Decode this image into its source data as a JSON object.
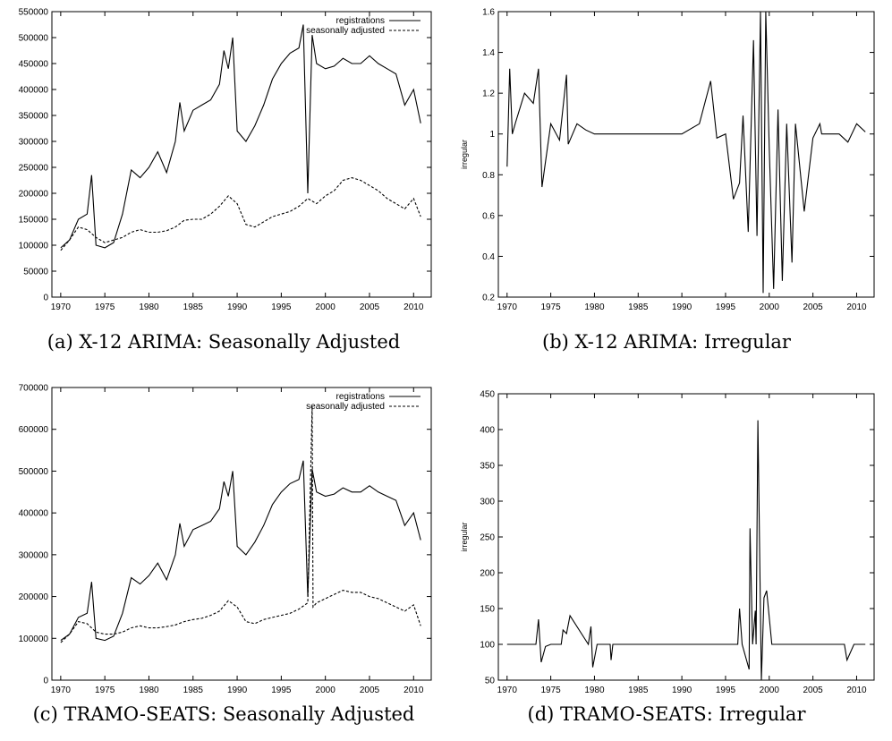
{
  "chart_data": [
    {
      "id": "a",
      "type": "line",
      "caption": "(a) X-12 ARIMA: Seasonally Adjusted",
      "xlim": [
        1969,
        2012
      ],
      "ylim": [
        0,
        550000
      ],
      "xticks": [
        1970,
        1975,
        1980,
        1985,
        1990,
        1995,
        2000,
        2005,
        2010
      ],
      "yticks": [
        0,
        50000,
        100000,
        150000,
        200000,
        250000,
        300000,
        350000,
        400000,
        450000,
        500000,
        550000
      ],
      "ylabel": "",
      "legend": [
        "registrations",
        "seasonally adjusted"
      ],
      "series": [
        {
          "name": "registrations",
          "style": "solid",
          "x": [
            1970,
            1971,
            1972,
            1973,
            1973.5,
            1974,
            1975,
            1976,
            1977,
            1978,
            1979,
            1980,
            1981,
            1982,
            1983,
            1983.5,
            1984,
            1985,
            1986,
            1987,
            1988,
            1988.5,
            1989,
            1989.5,
            1990,
            1991,
            1992,
            1993,
            1994,
            1995,
            1996,
            1997,
            1997.5,
            1998,
            1998.5,
            1999,
            2000,
            2001,
            2002,
            2003,
            2004,
            2005,
            2006,
            2007,
            2008,
            2009,
            2010,
            2010.8
          ],
          "y": [
            95000,
            110000,
            150000,
            160000,
            235000,
            100000,
            95000,
            105000,
            160000,
            245000,
            230000,
            250000,
            280000,
            240000,
            300000,
            375000,
            320000,
            360000,
            370000,
            380000,
            410000,
            475000,
            440000,
            500000,
            320000,
            300000,
            330000,
            370000,
            420000,
            450000,
            470000,
            480000,
            525000,
            200000,
            505000,
            450000,
            440000,
            445000,
            460000,
            450000,
            450000,
            465000,
            450000,
            440000,
            430000,
            370000,
            400000,
            335000
          ]
        },
        {
          "name": "seasonally adjusted",
          "style": "dashed",
          "x": [
            1970,
            1971,
            1972,
            1973,
            1974,
            1975,
            1976,
            1977,
            1978,
            1979,
            1980,
            1981,
            1982,
            1983,
            1984,
            1985,
            1986,
            1987,
            1988,
            1989,
            1990,
            1991,
            1992,
            1993,
            1994,
            1995,
            1996,
            1997,
            1998,
            1999,
            2000,
            2001,
            2002,
            2003,
            2004,
            2005,
            2006,
            2007,
            2008,
            2009,
            2010,
            2010.8
          ],
          "y": [
            90000,
            110000,
            135000,
            130000,
            115000,
            105000,
            110000,
            115000,
            125000,
            130000,
            125000,
            125000,
            128000,
            135000,
            148000,
            150000,
            150000,
            160000,
            175000,
            195000,
            180000,
            140000,
            135000,
            145000,
            155000,
            160000,
            165000,
            175000,
            190000,
            180000,
            195000,
            205000,
            225000,
            230000,
            225000,
            215000,
            205000,
            190000,
            180000,
            170000,
            190000,
            155000
          ]
        }
      ]
    },
    {
      "id": "b",
      "type": "line",
      "caption": "(b) X-12 ARIMA: Irregular",
      "xlim": [
        1969,
        2012
      ],
      "ylim": [
        0.2,
        1.6
      ],
      "xticks": [
        1970,
        1975,
        1980,
        1985,
        1990,
        1995,
        2000,
        2005,
        2010
      ],
      "yticks": [
        0.2,
        0.4,
        0.6,
        0.8,
        1,
        1.2,
        1.4,
        1.6
      ],
      "ylabel": "irregular",
      "series": [
        {
          "name": "irregular",
          "style": "solid",
          "x": [
            1970,
            1970.3,
            1970.6,
            1971,
            1972,
            1973,
            1973.6,
            1974,
            1975,
            1976,
            1976.8,
            1977,
            1978,
            1979,
            1980,
            1982,
            1984,
            1986,
            1988,
            1990,
            1992,
            1993.3,
            1994,
            1995,
            1995.9,
            1996.6,
            1997,
            1997.6,
            1998.2,
            1998.6,
            1999,
            1999.3,
            1999.6,
            2000,
            2000.5,
            2001,
            2001.5,
            2002,
            2002.6,
            2003,
            2004,
            2005,
            2005.8,
            2006,
            2007,
            2008,
            2009,
            2010,
            2011
          ],
          "y": [
            0.84,
            1.32,
            1.0,
            1.06,
            1.2,
            1.15,
            1.32,
            0.74,
            1.05,
            0.97,
            1.29,
            0.95,
            1.05,
            1.02,
            1.0,
            1.0,
            1.0,
            1.0,
            1.0,
            1.0,
            1.05,
            1.26,
            0.98,
            1.0,
            0.68,
            0.76,
            1.09,
            0.52,
            1.46,
            0.5,
            1.6,
            0.22,
            1.6,
            0.93,
            0.24,
            1.12,
            0.28,
            1.05,
            0.37,
            1.05,
            0.62,
            0.98,
            1.05,
            1.0,
            1.0,
            1.0,
            0.96,
            1.05,
            1.01
          ]
        }
      ]
    },
    {
      "id": "c",
      "type": "line",
      "caption": "(c) TRAMO-SEATS: Seasonally Adjusted",
      "xlim": [
        1969,
        2012
      ],
      "ylim": [
        0,
        700000
      ],
      "xticks": [
        1970,
        1975,
        1980,
        1985,
        1990,
        1995,
        2000,
        2005,
        2010
      ],
      "yticks": [
        0,
        100000,
        200000,
        300000,
        400000,
        500000,
        600000,
        700000
      ],
      "ylabel": "",
      "legend": [
        "registrations",
        "seasonally adjusted"
      ],
      "series": [
        {
          "name": "registrations",
          "style": "solid",
          "x": [
            1970,
            1971,
            1972,
            1973,
            1973.5,
            1974,
            1975,
            1976,
            1977,
            1978,
            1979,
            1980,
            1981,
            1982,
            1983,
            1983.5,
            1984,
            1985,
            1986,
            1987,
            1988,
            1988.5,
            1989,
            1989.5,
            1990,
            1991,
            1992,
            1993,
            1994,
            1995,
            1996,
            1997,
            1997.5,
            1998,
            1998.5,
            1999,
            2000,
            2001,
            2002,
            2003,
            2004,
            2005,
            2006,
            2007,
            2008,
            2009,
            2010,
            2010.8
          ],
          "y": [
            95000,
            110000,
            150000,
            160000,
            235000,
            100000,
            95000,
            105000,
            160000,
            245000,
            230000,
            250000,
            280000,
            240000,
            300000,
            375000,
            320000,
            360000,
            370000,
            380000,
            410000,
            475000,
            440000,
            500000,
            320000,
            300000,
            330000,
            370000,
            420000,
            450000,
            470000,
            480000,
            525000,
            200000,
            505000,
            450000,
            440000,
            445000,
            460000,
            450000,
            450000,
            465000,
            450000,
            440000,
            430000,
            370000,
            400000,
            335000
          ]
        },
        {
          "name": "seasonally adjusted",
          "style": "dashed",
          "x": [
            1970,
            1971,
            1972,
            1973,
            1974,
            1975,
            1976,
            1977,
            1978,
            1979,
            1980,
            1981,
            1982,
            1983,
            1984,
            1985,
            1986,
            1987,
            1988,
            1989,
            1990,
            1991,
            1992,
            1993,
            1994,
            1995,
            1996,
            1997,
            1998,
            1998.5,
            1998.6,
            1999,
            2000,
            2001,
            2002,
            2003,
            2004,
            2005,
            2006,
            2007,
            2008,
            2009,
            2010,
            2010.8
          ],
          "y": [
            90000,
            110000,
            140000,
            135000,
            115000,
            110000,
            110000,
            115000,
            125000,
            130000,
            125000,
            125000,
            128000,
            132000,
            140000,
            145000,
            148000,
            155000,
            165000,
            190000,
            175000,
            140000,
            135000,
            145000,
            150000,
            155000,
            160000,
            170000,
            185000,
            655000,
            175000,
            185000,
            195000,
            205000,
            215000,
            210000,
            210000,
            200000,
            195000,
            185000,
            175000,
            165000,
            180000,
            130000
          ]
        }
      ]
    },
    {
      "id": "d",
      "type": "line",
      "caption": "(d) TRAMO-SEATS: Irregular",
      "xlim": [
        1969,
        2012
      ],
      "ylim": [
        50,
        450
      ],
      "xticks": [
        1970,
        1975,
        1980,
        1985,
        1990,
        1995,
        2000,
        2005,
        2010
      ],
      "yticks": [
        50,
        100,
        150,
        200,
        250,
        300,
        350,
        400,
        450
      ],
      "ylabel": "irregular",
      "series": [
        {
          "name": "irregular",
          "style": "solid",
          "x": [
            1970,
            1973.3,
            1973.6,
            1973.9,
            1974.4,
            1975,
            1976.2,
            1976.4,
            1976.8,
            1977.2,
            1979.3,
            1979.6,
            1979.8,
            1980.3,
            1981.8,
            1981.9,
            1982.1,
            1996.4,
            1996.6,
            1996.9,
            1997.7,
            1997.8,
            1998.1,
            1998.4,
            1998.5,
            1998.7,
            1999.1,
            1999.4,
            1999.7,
            2000.3,
            2008.6,
            2008.9,
            2009.7,
            2011
          ],
          "y": [
            100,
            100,
            135,
            75,
            97,
            100,
            100,
            120,
            115,
            140,
            100,
            125,
            68,
            100,
            100,
            78,
            100,
            100,
            150,
            100,
            65,
            262,
            100,
            147,
            100,
            413,
            50,
            165,
            175,
            100,
            100,
            78,
            100,
            100
          ]
        }
      ]
    }
  ]
}
